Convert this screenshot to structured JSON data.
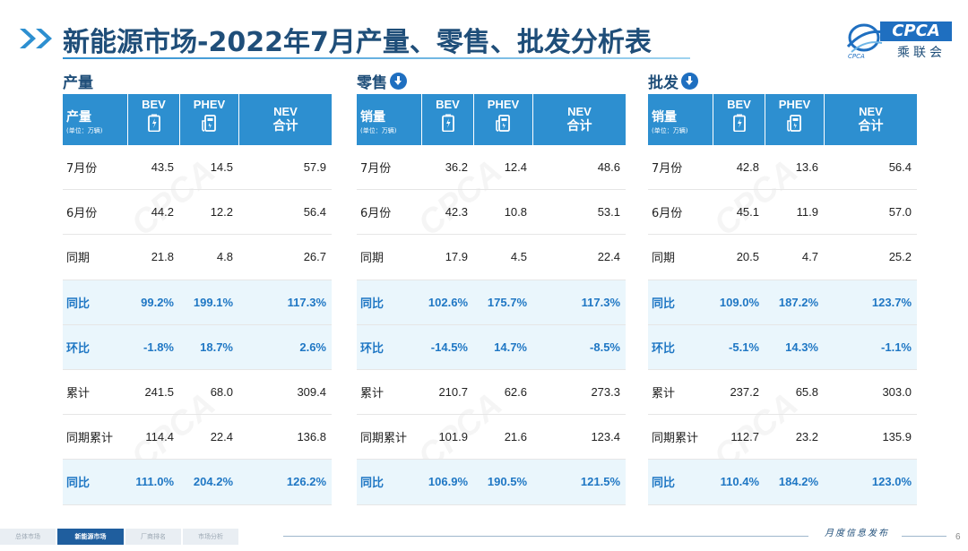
{
  "header": {
    "title": "新能源市场-2022年7月产量、零售、批发分析表",
    "logo_text": "CPCA",
    "logo_sub": "乘联会",
    "logo_small": "CPCA"
  },
  "colors": {
    "accent": "#2d8fd0",
    "title": "#1f4e79",
    "highlight_row": "#eaf6fc",
    "highlight_text": "#1f77c4"
  },
  "columns": {
    "bev": "BEV",
    "phev": "PHEV",
    "nev_1": "NEV",
    "nev_2": "合计",
    "unit": "(单位：万辆)"
  },
  "panels": [
    {
      "label": "产量",
      "down_icon": false,
      "head": "产量",
      "rows": [
        {
          "label": "7月份",
          "bev": "43.5",
          "phev": "14.5",
          "nev": "57.9",
          "hl": false
        },
        {
          "label": "6月份",
          "bev": "44.2",
          "phev": "12.2",
          "nev": "56.4",
          "hl": false
        },
        {
          "label": "同期",
          "bev": "21.8",
          "phev": "4.8",
          "nev": "26.7",
          "hl": false
        },
        {
          "label": "同比",
          "bev": "99.2%",
          "phev": "199.1%",
          "nev": "117.3%",
          "hl": true
        },
        {
          "label": "环比",
          "bev": "-1.8%",
          "phev": "18.7%",
          "nev": "2.6%",
          "hl": true
        },
        {
          "label": "累计",
          "bev": "241.5",
          "phev": "68.0",
          "nev": "309.4",
          "hl": false
        },
        {
          "label": "同期累计",
          "bev": "114.4",
          "phev": "22.4",
          "nev": "136.8",
          "hl": false
        },
        {
          "label": "同比",
          "bev": "111.0%",
          "phev": "204.2%",
          "nev": "126.2%",
          "hl": true
        }
      ]
    },
    {
      "label": "零售",
      "down_icon": true,
      "head": "销量",
      "rows": [
        {
          "label": "7月份",
          "bev": "36.2",
          "phev": "12.4",
          "nev": "48.6",
          "hl": false
        },
        {
          "label": "6月份",
          "bev": "42.3",
          "phev": "10.8",
          "nev": "53.1",
          "hl": false
        },
        {
          "label": "同期",
          "bev": "17.9",
          "phev": "4.5",
          "nev": "22.4",
          "hl": false
        },
        {
          "label": "同比",
          "bev": "102.6%",
          "phev": "175.7%",
          "nev": "117.3%",
          "hl": true
        },
        {
          "label": "环比",
          "bev": "-14.5%",
          "phev": "14.7%",
          "nev": "-8.5%",
          "hl": true
        },
        {
          "label": "累计",
          "bev": "210.7",
          "phev": "62.6",
          "nev": "273.3",
          "hl": false
        },
        {
          "label": "同期累计",
          "bev": "101.9",
          "phev": "21.6",
          "nev": "123.4",
          "hl": false
        },
        {
          "label": "同比",
          "bev": "106.9%",
          "phev": "190.5%",
          "nev": "121.5%",
          "hl": true
        }
      ]
    },
    {
      "label": "批发",
      "down_icon": true,
      "head": "销量",
      "rows": [
        {
          "label": "7月份",
          "bev": "42.8",
          "phev": "13.6",
          "nev": "56.4",
          "hl": false
        },
        {
          "label": "6月份",
          "bev": "45.1",
          "phev": "11.9",
          "nev": "57.0",
          "hl": false
        },
        {
          "label": "同期",
          "bev": "20.5",
          "phev": "4.7",
          "nev": "25.2",
          "hl": false
        },
        {
          "label": "同比",
          "bev": "109.0%",
          "phev": "187.2%",
          "nev": "123.7%",
          "hl": true
        },
        {
          "label": "环比",
          "bev": "-5.1%",
          "phev": "14.3%",
          "nev": "-1.1%",
          "hl": true
        },
        {
          "label": "累计",
          "bev": "237.2",
          "phev": "65.8",
          "nev": "303.0",
          "hl": false
        },
        {
          "label": "同期累计",
          "bev": "112.7",
          "phev": "23.2",
          "nev": "135.9",
          "hl": false
        },
        {
          "label": "同比",
          "bev": "110.4%",
          "phev": "184.2%",
          "nev": "123.0%",
          "hl": true
        }
      ]
    }
  ],
  "footer": {
    "tabs": [
      {
        "label": "总体市场",
        "active": false
      },
      {
        "label": "新能源市场",
        "active": true
      },
      {
        "label": "厂商排名",
        "active": false
      },
      {
        "label": "市场分析",
        "active": false
      }
    ],
    "report_name": "月度信息发布",
    "page_number": "6"
  }
}
